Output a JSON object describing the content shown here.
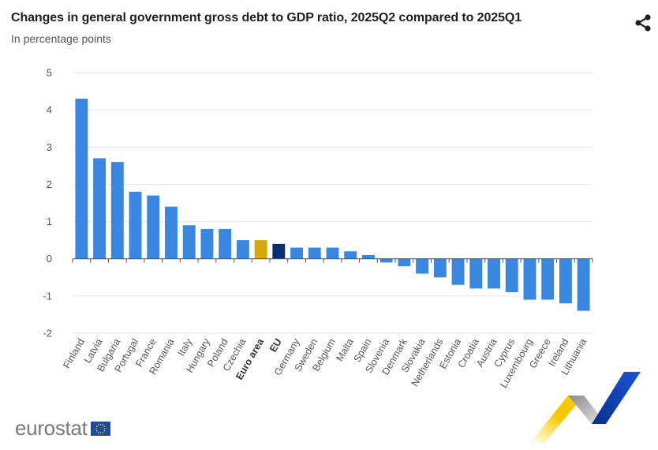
{
  "header": {
    "title": "Changes in general government gross debt to GDP ratio, 2025Q2 compared to 2025Q1",
    "subtitle": "In percentage points",
    "share_icon": "share-icon"
  },
  "footer": {
    "logo_text": "eurostat",
    "flag_icon": "eu-flag-icon"
  },
  "colors": {
    "country": "#3a87e0",
    "euro_area": "#d4a80a",
    "eu": "#0d2d73",
    "grid": "#e3e5ea",
    "axis": "#555555"
  },
  "chart_data": {
    "type": "bar",
    "title": "Changes in general government gross debt to GDP ratio, 2025Q2 compared to 2025Q1",
    "subtitle": "In percentage points",
    "xlabel": "",
    "ylabel": "",
    "ylim": [
      -2,
      5
    ],
    "yticks": [
      5,
      4,
      3,
      2,
      1,
      0,
      -1,
      -2
    ],
    "grid": true,
    "legend": "none",
    "categories": [
      "Finland",
      "Latvia",
      "Bulgaria",
      "Portugal",
      "France",
      "Romania",
      "Italy",
      "Hungary",
      "Poland",
      "Czechia",
      "Euro area",
      "EU",
      "Germany",
      "Sweden",
      "Belgium",
      "Malta",
      "Spain",
      "Slovenia",
      "Denmark",
      "Slovakia",
      "Netherlands",
      "Estonia",
      "Croatia",
      "Austria",
      "Cyprus",
      "Luxembourg",
      "Greece",
      "Ireland",
      "Lithuania"
    ],
    "values": [
      4.3,
      2.7,
      2.6,
      1.8,
      1.7,
      1.4,
      0.9,
      0.8,
      0.8,
      0.5,
      0.5,
      0.4,
      0.3,
      0.3,
      0.3,
      0.2,
      0.1,
      -0.1,
      -0.2,
      -0.4,
      -0.5,
      -0.7,
      -0.8,
      -0.8,
      -0.9,
      -1.1,
      -1.1,
      -1.2,
      -1.4
    ],
    "highlight": {
      "Euro area": "euro_area",
      "EU": "eu"
    },
    "bold_labels": [
      "Euro area",
      "EU"
    ]
  }
}
